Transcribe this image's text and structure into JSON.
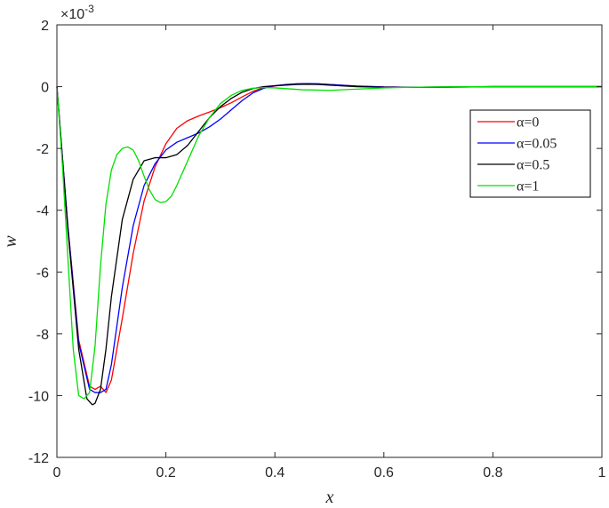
{
  "chart_data": {
    "type": "line",
    "title": "",
    "xlabel": "x",
    "ylabel": "w",
    "y_multiplier": "×10",
    "y_multiplier_exponent": "-3",
    "xlim": [
      0,
      1
    ],
    "ylim": [
      -12,
      2
    ],
    "x_ticks": [
      "0",
      "0.2",
      "0.4",
      "0.6",
      "0.8",
      "1"
    ],
    "y_ticks": [
      "2",
      "0",
      "-2",
      "-4",
      "-6",
      "-8",
      "-10",
      "-12"
    ],
    "grid": false,
    "legend_position": "top-right",
    "series": [
      {
        "name": "α=0",
        "color": "#ff0000",
        "x": [
          0,
          0.02,
          0.04,
          0.06,
          0.07,
          0.08,
          0.09,
          0.1,
          0.12,
          0.14,
          0.16,
          0.18,
          0.2,
          0.22,
          0.24,
          0.26,
          0.28,
          0.3,
          0.32,
          0.34,
          0.36,
          0.38,
          0.4,
          0.42,
          0.44,
          0.46,
          0.48,
          0.5,
          0.55,
          0.6,
          0.65,
          0.7,
          0.8,
          0.9,
          1.0
        ],
        "y": [
          0,
          -4.5,
          -8.2,
          -9.7,
          -9.8,
          -9.7,
          -9.9,
          -9.5,
          -7.5,
          -5.4,
          -3.7,
          -2.6,
          -1.85,
          -1.35,
          -1.1,
          -0.95,
          -0.82,
          -0.68,
          -0.52,
          -0.33,
          -0.15,
          -0.03,
          0.02,
          0.06,
          0.09,
          0.1,
          0.09,
          0.07,
          0.02,
          -0.01,
          -0.02,
          -0.02,
          0,
          0,
          0
        ]
      },
      {
        "name": "α=0.05",
        "color": "#0000ff",
        "x": [
          0,
          0.02,
          0.04,
          0.06,
          0.07,
          0.08,
          0.09,
          0.1,
          0.12,
          0.14,
          0.16,
          0.18,
          0.2,
          0.22,
          0.24,
          0.26,
          0.28,
          0.3,
          0.32,
          0.34,
          0.36,
          0.38,
          0.4,
          0.42,
          0.44,
          0.46,
          0.48,
          0.5,
          0.55,
          0.6,
          0.65,
          0.7,
          0.8,
          0.9,
          1.0
        ],
        "y": [
          0,
          -4.5,
          -8.3,
          -9.8,
          -9.9,
          -9.9,
          -9.8,
          -9.0,
          -6.5,
          -4.5,
          -3.2,
          -2.5,
          -2.05,
          -1.8,
          -1.65,
          -1.5,
          -1.3,
          -1.05,
          -0.75,
          -0.45,
          -0.2,
          -0.05,
          0.03,
          0.07,
          0.09,
          0.1,
          0.09,
          0.07,
          0.02,
          -0.01,
          -0.02,
          -0.02,
          0,
          0,
          0
        ]
      },
      {
        "name": "α=0.5",
        "color": "#000000",
        "x": [
          0,
          0.02,
          0.04,
          0.055,
          0.065,
          0.07,
          0.08,
          0.09,
          0.1,
          0.12,
          0.14,
          0.16,
          0.18,
          0.2,
          0.22,
          0.24,
          0.26,
          0.28,
          0.3,
          0.32,
          0.34,
          0.36,
          0.38,
          0.4,
          0.42,
          0.44,
          0.46,
          0.48,
          0.5,
          0.55,
          0.6,
          0.65,
          0.7,
          0.8,
          0.9,
          1.0
        ],
        "y": [
          0,
          -4.6,
          -8.5,
          -10.1,
          -10.3,
          -10.25,
          -9.8,
          -8.5,
          -6.8,
          -4.3,
          -3.0,
          -2.4,
          -2.3,
          -2.3,
          -2.2,
          -1.9,
          -1.45,
          -1.0,
          -0.65,
          -0.38,
          -0.18,
          -0.06,
          0.0,
          0.03,
          0.05,
          0.07,
          0.08,
          0.07,
          0.05,
          0.0,
          -0.02,
          -0.02,
          -0.01,
          0,
          0,
          0
        ]
      },
      {
        "name": "α=1",
        "color": "#00e000",
        "x": [
          0,
          0.01,
          0.02,
          0.03,
          0.04,
          0.05,
          0.06,
          0.07,
          0.08,
          0.09,
          0.1,
          0.11,
          0.12,
          0.13,
          0.14,
          0.15,
          0.16,
          0.17,
          0.18,
          0.19,
          0.2,
          0.21,
          0.22,
          0.24,
          0.26,
          0.28,
          0.3,
          0.32,
          0.34,
          0.36,
          0.38,
          0.4,
          0.45,
          0.5,
          0.55,
          0.6,
          0.65,
          0.7,
          0.8,
          0.9,
          1.0
        ],
        "y": [
          0,
          -2.5,
          -5.5,
          -8.5,
          -10.0,
          -10.1,
          -9.9,
          -8.4,
          -5.8,
          -3.8,
          -2.7,
          -2.2,
          -2.0,
          -1.95,
          -2.05,
          -2.4,
          -2.9,
          -3.35,
          -3.65,
          -3.75,
          -3.72,
          -3.55,
          -3.2,
          -2.4,
          -1.6,
          -1.0,
          -0.55,
          -0.28,
          -0.12,
          -0.05,
          -0.03,
          -0.04,
          -0.1,
          -0.12,
          -0.08,
          -0.04,
          -0.02,
          -0.01,
          0,
          0,
          0
        ]
      }
    ]
  }
}
